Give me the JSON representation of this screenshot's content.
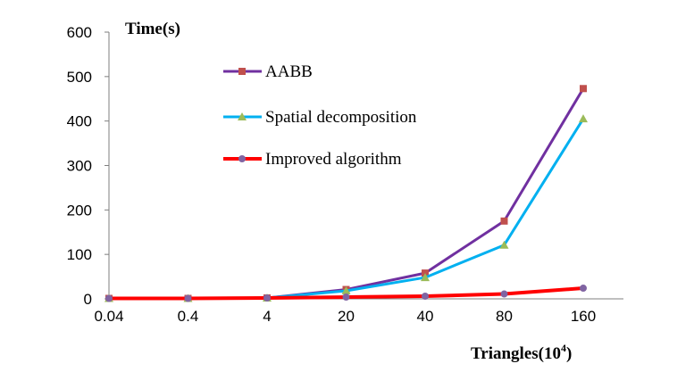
{
  "chart_data": {
    "type": "line",
    "ylabel": "Time(s)",
    "xlabel_main": "Triangles(10",
    "xlabel_sup": "4",
    "xlabel_close": ")",
    "categories": [
      "0.04",
      "0.4",
      "4",
      "20",
      "40",
      "80",
      "160"
    ],
    "ylim": [
      0,
      600
    ],
    "yticks": [
      "0",
      "100",
      "200",
      "300",
      "400",
      "500",
      "600"
    ],
    "grid": false,
    "legend_position": "top-center",
    "series": [
      {
        "name": "AABB",
        "values": [
          1,
          1,
          2,
          21,
          58,
          175,
          473
        ],
        "color": "#7030A0",
        "marker": "square",
        "marker_color": "#C0504D"
      },
      {
        "name": "Spatial decomposition",
        "values": [
          1,
          1,
          2,
          18,
          48,
          121,
          405
        ],
        "color": "#00B0F0",
        "marker": "triangle",
        "marker_color": "#9BBB59"
      },
      {
        "name": "Improved algorithm",
        "values": [
          1,
          1,
          2,
          4,
          6,
          11,
          24
        ],
        "color": "#FF0000",
        "marker": "circle",
        "marker_color": "#8064A2"
      }
    ]
  }
}
